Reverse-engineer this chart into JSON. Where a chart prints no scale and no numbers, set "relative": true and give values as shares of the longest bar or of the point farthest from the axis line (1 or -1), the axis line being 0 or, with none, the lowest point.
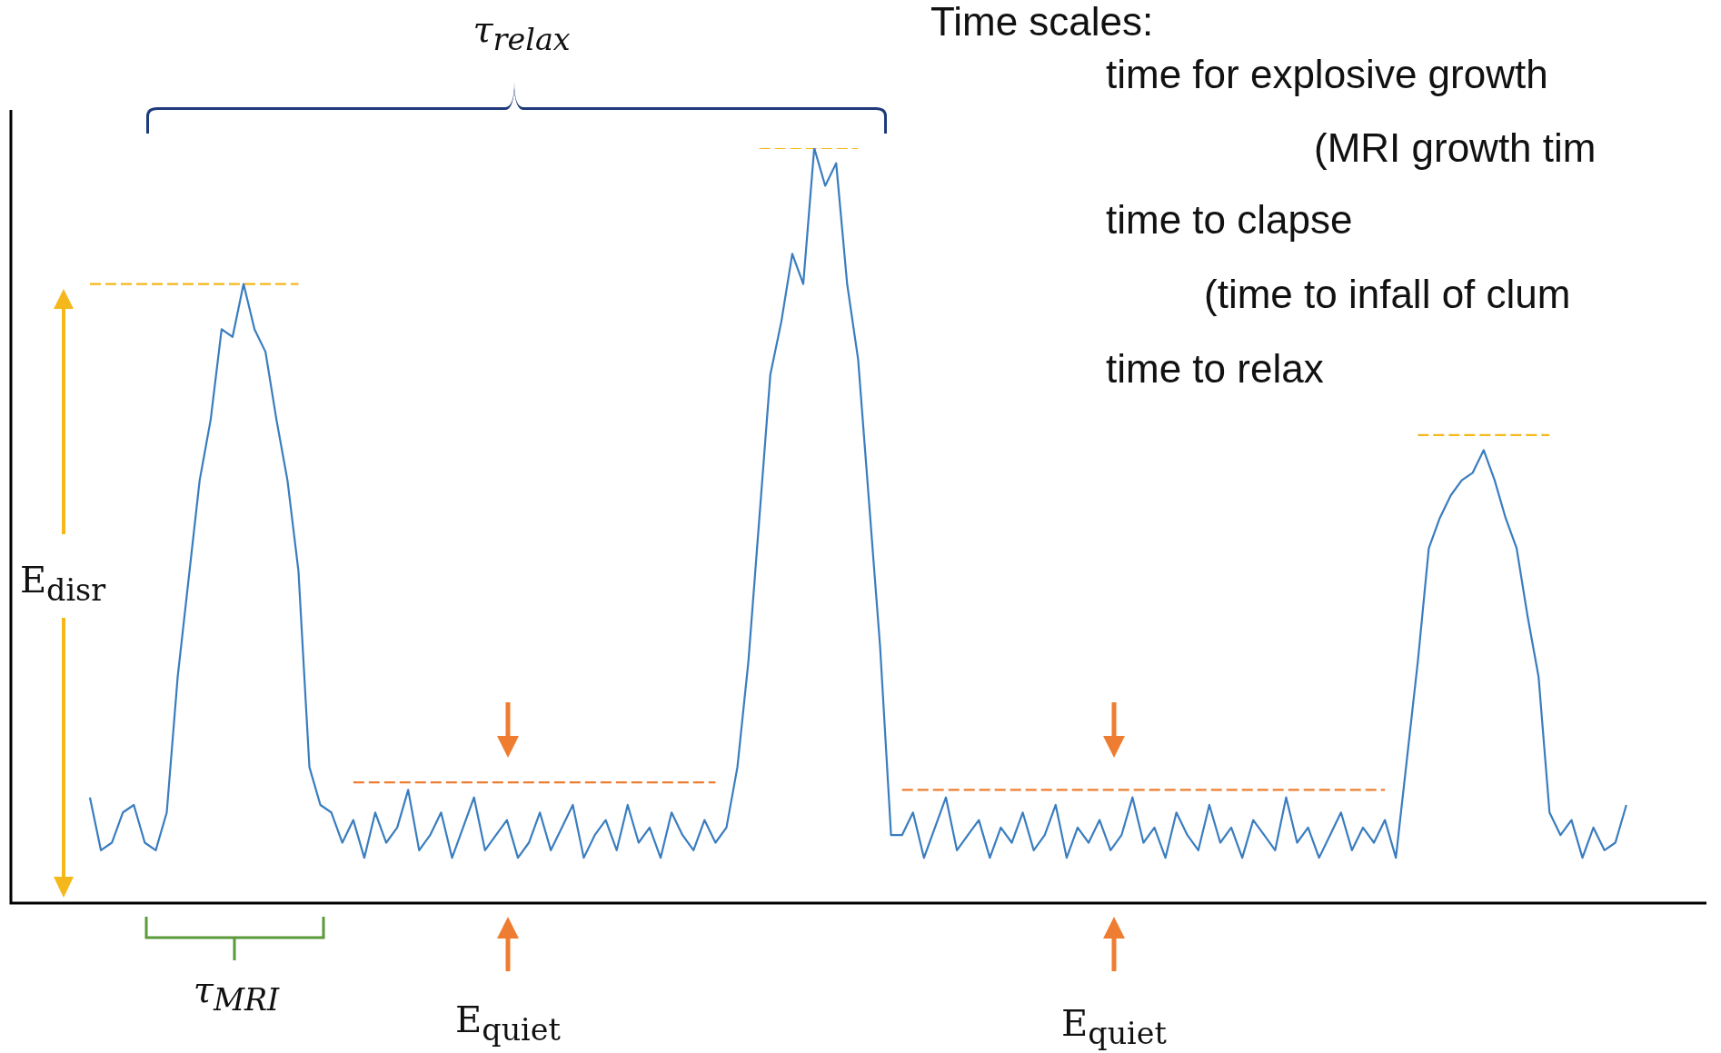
{
  "chart_data": {
    "type": "line",
    "relative": true,
    "legend": false,
    "marker": "none",
    "tick_labels": false,
    "categories": [
      null,
      null,
      null,
      null,
      null,
      null,
      null,
      null,
      null,
      null,
      null,
      null,
      null,
      null,
      null,
      null,
      null,
      null,
      null,
      null,
      null,
      null,
      null,
      null,
      null,
      null,
      null,
      null,
      null,
      null,
      null,
      null,
      null,
      null,
      null,
      null,
      null,
      null,
      null,
      null,
      null,
      null,
      null,
      null,
      null,
      null,
      null,
      null,
      null,
      null,
      null,
      null,
      null,
      null,
      null,
      null,
      null,
      null,
      null,
      null,
      null,
      null,
      null,
      null,
      null,
      null,
      null,
      null,
      null,
      null,
      null,
      null,
      null,
      null,
      null,
      null,
      null,
      null,
      null,
      null,
      null,
      null,
      null,
      null,
      null,
      null,
      null,
      null,
      null,
      null,
      null,
      null,
      null,
      null,
      null,
      null,
      null,
      null,
      null,
      null,
      null,
      null,
      null,
      null,
      null,
      null,
      null,
      null,
      null,
      null,
      null,
      null,
      null,
      null,
      null,
      null,
      null,
      null,
      null,
      null,
      null,
      null,
      null,
      null,
      null,
      null,
      null,
      null,
      null,
      null,
      null,
      null,
      null,
      null,
      null,
      null,
      null,
      null,
      null,
      null,
      null
    ],
    "series": [
      {
        "color": "#3a7dbf",
        "line_style": "solid",
        "values": [
          0.14,
          0.07,
          0.08,
          0.12,
          0.13,
          0.08,
          0.07,
          0.12,
          0.3,
          0.43,
          0.56,
          0.64,
          0.76,
          0.75,
          0.82,
          0.76,
          0.73,
          0.64,
          0.56,
          0.44,
          0.18,
          0.13,
          0.12,
          0.08,
          0.11,
          0.06,
          0.12,
          0.08,
          0.1,
          0.15,
          0.07,
          0.09,
          0.12,
          0.06,
          0.1,
          0.14,
          0.07,
          0.09,
          0.11,
          0.06,
          0.08,
          0.12,
          0.07,
          0.1,
          0.13,
          0.06,
          0.09,
          0.11,
          0.07,
          0.13,
          0.08,
          0.1,
          0.06,
          0.12,
          0.09,
          0.07,
          0.11,
          0.08,
          0.1,
          0.18,
          0.32,
          0.51,
          0.7,
          0.77,
          0.86,
          0.82,
          1,
          0.95,
          0.98,
          0.82,
          0.72,
          0.53,
          0.34,
          0.09,
          0.09,
          0.12,
          0.06,
          0.1,
          0.14,
          0.07,
          0.09,
          0.11,
          0.06,
          0.1,
          0.08,
          0.12,
          0.07,
          0.09,
          0.13,
          0.06,
          0.1,
          0.08,
          0.11,
          0.07,
          0.09,
          0.14,
          0.08,
          0.1,
          0.06,
          0.12,
          0.09,
          0.07,
          0.13,
          0.08,
          0.1,
          0.06,
          0.11,
          0.09,
          0.07,
          0.14,
          0.08,
          0.1,
          0.06,
          0.09,
          0.12,
          0.07,
          0.1,
          0.08,
          0.11,
          0.06,
          0.19,
          0.32,
          0.47,
          0.51,
          0.54,
          0.56,
          0.57,
          0.6,
          0.56,
          0.51,
          0.47,
          0.38,
          0.3,
          0.12,
          0.09,
          0.11,
          0.06,
          0.1,
          0.07,
          0.08,
          0.13
        ]
      },
      {
        "color": "#f5b81c",
        "line_style": "dashed",
        "values": [
          0.82,
          0.82,
          0.82,
          0.82,
          0.82,
          0.82,
          0.82,
          0.82,
          0.82,
          0.82,
          0.82,
          0.82,
          0.82,
          0.82,
          0.82,
          0.82,
          0.82,
          0.82,
          0.82,
          0.82,
          null,
          null,
          null,
          null,
          null,
          null,
          null,
          null,
          null,
          null,
          null,
          null,
          null,
          null,
          null,
          null,
          null,
          null,
          null,
          null,
          null,
          null,
          null,
          null,
          null,
          null,
          null,
          null,
          null,
          null,
          null,
          null,
          null,
          null,
          null,
          null,
          null,
          null,
          null,
          null,
          null,
          null,
          null,
          null,
          null,
          null,
          null,
          null,
          null,
          null,
          null,
          null,
          null,
          null,
          null,
          null,
          null,
          null,
          null,
          null,
          null,
          null,
          null,
          null,
          null,
          null,
          null,
          null,
          null,
          null,
          null,
          null,
          null,
          null,
          null,
          null,
          null,
          null,
          null,
          null,
          null,
          null,
          null,
          null,
          null,
          null,
          null,
          null,
          null,
          null,
          null,
          null,
          null,
          null,
          null,
          null,
          null,
          null,
          null,
          null,
          null,
          null,
          null,
          null,
          null,
          null,
          null,
          null,
          null,
          null,
          null,
          null,
          null,
          null,
          null,
          null,
          null,
          null,
          null,
          null,
          null
        ]
      },
      {
        "color": "#f5b81c",
        "line_style": "dashed",
        "values": [
          null,
          null,
          null,
          null,
          null,
          null,
          null,
          null,
          null,
          null,
          null,
          null,
          null,
          null,
          null,
          null,
          null,
          null,
          null,
          null,
          null,
          null,
          null,
          null,
          null,
          null,
          null,
          null,
          null,
          null,
          null,
          null,
          null,
          null,
          null,
          null,
          null,
          null,
          null,
          null,
          null,
          null,
          null,
          null,
          null,
          null,
          null,
          null,
          null,
          null,
          null,
          null,
          null,
          null,
          null,
          null,
          null,
          null,
          null,
          null,
          null,
          1,
          1,
          1,
          1,
          1,
          1,
          1,
          1,
          1,
          1,
          null,
          null,
          null,
          null,
          null,
          null,
          null,
          null,
          null,
          null,
          null,
          null,
          null,
          null,
          null,
          null,
          null,
          null,
          null,
          null,
          null,
          null,
          null,
          null,
          null,
          null,
          null,
          null,
          null,
          null,
          null,
          null,
          null,
          null,
          null,
          null,
          null,
          null,
          null,
          null,
          null,
          null,
          null,
          null,
          null,
          null,
          null,
          null,
          null,
          null,
          null,
          null,
          null,
          null,
          null,
          null,
          null,
          null,
          null,
          null,
          null,
          null,
          null,
          null,
          null,
          null,
          null,
          null,
          null,
          null
        ]
      },
      {
        "color": "#f5b81c",
        "line_style": "dashed",
        "values": [
          null,
          null,
          null,
          null,
          null,
          null,
          null,
          null,
          null,
          null,
          null,
          null,
          null,
          null,
          null,
          null,
          null,
          null,
          null,
          null,
          null,
          null,
          null,
          null,
          null,
          null,
          null,
          null,
          null,
          null,
          null,
          null,
          null,
          null,
          null,
          null,
          null,
          null,
          null,
          null,
          null,
          null,
          null,
          null,
          null,
          null,
          null,
          null,
          null,
          null,
          null,
          null,
          null,
          null,
          null,
          null,
          null,
          null,
          null,
          null,
          null,
          null,
          null,
          null,
          null,
          null,
          null,
          null,
          null,
          null,
          null,
          null,
          null,
          null,
          null,
          null,
          null,
          null,
          null,
          null,
          null,
          null,
          null,
          null,
          null,
          null,
          null,
          null,
          null,
          null,
          null,
          null,
          null,
          null,
          null,
          null,
          null,
          null,
          null,
          null,
          null,
          null,
          null,
          null,
          null,
          null,
          null,
          null,
          null,
          null,
          null,
          null,
          null,
          null,
          null,
          null,
          null,
          null,
          null,
          null,
          null,
          0.62,
          0.62,
          0.62,
          0.62,
          0.62,
          0.62,
          0.62,
          0.62,
          0.62,
          0.62,
          0.62,
          0.62,
          0.62,
          null,
          null,
          null,
          null,
          null,
          null,
          null
        ]
      },
      {
        "color": "#ee7d31",
        "line_style": "dashed",
        "values": [
          null,
          null,
          null,
          null,
          null,
          null,
          null,
          null,
          null,
          null,
          null,
          null,
          null,
          null,
          null,
          null,
          null,
          null,
          null,
          null,
          null,
          null,
          null,
          null,
          0.16,
          0.16,
          0.16,
          0.16,
          0.16,
          0.16,
          0.16,
          0.16,
          0.16,
          0.16,
          0.16,
          0.16,
          0.16,
          0.16,
          0.16,
          0.16,
          0.16,
          0.16,
          0.16,
          0.16,
          0.16,
          0.16,
          0.16,
          0.16,
          0.16,
          0.16,
          0.16,
          0.16,
          0.16,
          0.16,
          0.16,
          0.16,
          0.16,
          0.16,
          null,
          null,
          null,
          null,
          null,
          null,
          null,
          null,
          null,
          null,
          null,
          null,
          null,
          null,
          null,
          null,
          null,
          null,
          null,
          null,
          null,
          null,
          null,
          null,
          null,
          null,
          null,
          null,
          null,
          null,
          null,
          null,
          null,
          null,
          null,
          null,
          null,
          null,
          null,
          null,
          null,
          null,
          null,
          null,
          null,
          null,
          null,
          null,
          null,
          null,
          null,
          null,
          null,
          null,
          null,
          null,
          null,
          null,
          null,
          null,
          null,
          null,
          null,
          null,
          null,
          null,
          null,
          null,
          null,
          null,
          null,
          null,
          null,
          null,
          null,
          null,
          null,
          null,
          null,
          null,
          null,
          null,
          null
        ]
      },
      {
        "color": "#ee7d31",
        "line_style": "dashed",
        "values": [
          null,
          null,
          null,
          null,
          null,
          null,
          null,
          null,
          null,
          null,
          null,
          null,
          null,
          null,
          null,
          null,
          null,
          null,
          null,
          null,
          null,
          null,
          null,
          null,
          null,
          null,
          null,
          null,
          null,
          null,
          null,
          null,
          null,
          null,
          null,
          null,
          null,
          null,
          null,
          null,
          null,
          null,
          null,
          null,
          null,
          null,
          null,
          null,
          null,
          null,
          null,
          null,
          null,
          null,
          null,
          null,
          null,
          null,
          null,
          null,
          null,
          null,
          null,
          null,
          null,
          null,
          null,
          null,
          null,
          null,
          null,
          null,
          null,
          null,
          0.15,
          0.15,
          0.15,
          0.15,
          0.15,
          0.15,
          0.15,
          0.15,
          0.15,
          0.15,
          0.15,
          0.15,
          0.15,
          0.15,
          0.15,
          0.15,
          0.15,
          0.15,
          0.15,
          0.15,
          0.15,
          0.15,
          0.15,
          0.15,
          0.15,
          0.15,
          0.15,
          0.15,
          0.15,
          0.15,
          0.15,
          0.15,
          0.15,
          0.15,
          0.15,
          0.15,
          0.15,
          0.15,
          0.15,
          0.15,
          0.15,
          0.15,
          0.15,
          0.15,
          0.15,
          null,
          null,
          null,
          null,
          null,
          null,
          null,
          null,
          null,
          null,
          null,
          null,
          null,
          null,
          null,
          null,
          null,
          null,
          null,
          null,
          null,
          null
        ]
      }
    ],
    "annotations": [
      "τ$_{relax}$",
      "E$_{disr}$",
      "τ$_{MRI}$",
      "E$_{quiet}$",
      "E$_{quiet}$",
      "Time scales:",
      "time for explosive growth",
      "(MRI growth tim",
      "time to clapse",
      "(time to infall of clum",
      "time to relax"
    ]
  }
}
